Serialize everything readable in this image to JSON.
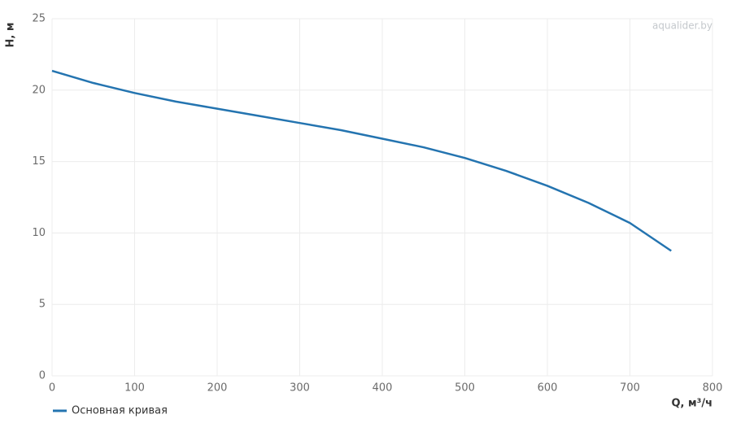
{
  "chart_data": {
    "type": "line",
    "watermark": "aqualider.by",
    "x_label": "Q, м³/ч",
    "y_label": "H, м",
    "x": [
      0,
      50,
      100,
      150,
      200,
      250,
      300,
      350,
      400,
      450,
      500,
      550,
      600,
      650,
      700,
      750
    ],
    "series": [
      {
        "name": "Основная кривая",
        "color": "#2474b0",
        "values": [
          21.35,
          20.5,
          19.8,
          19.2,
          18.7,
          18.2,
          17.7,
          17.2,
          16.6,
          16.0,
          15.25,
          14.35,
          13.3,
          12.1,
          10.7,
          8.75
        ]
      }
    ],
    "xlim": [
      0,
      800
    ],
    "xticks": [
      0,
      100,
      200,
      300,
      400,
      500,
      600,
      700,
      800
    ],
    "ylim": [
      0,
      25
    ],
    "yticks": [
      0,
      5,
      10,
      15,
      20,
      25
    ],
    "grid": true
  }
}
